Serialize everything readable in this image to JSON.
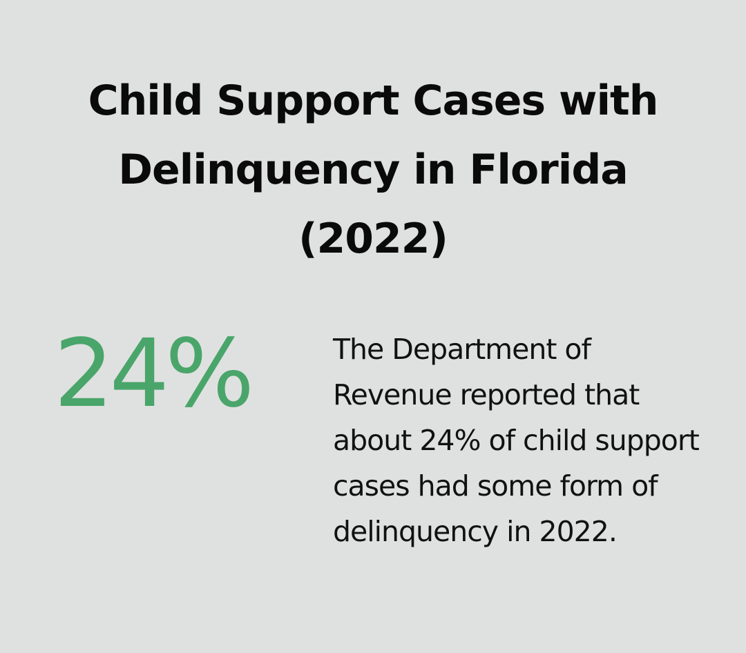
{
  "title": "Child Support Cases with Delinquency in Florida (2022)",
  "stat": {
    "value": "24%",
    "color": "#4aa56a"
  },
  "description": "The Department of Revenue reported that about 24% of child support cases had some form of delinquency in 2022."
}
